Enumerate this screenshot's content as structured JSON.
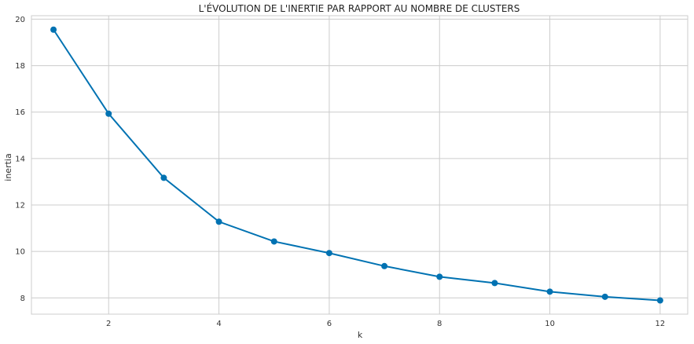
{
  "chart_data": {
    "type": "line",
    "title": "L'ÉVOLUTION DE L'INERTIE PAR RAPPORT AU NOMBRE DE CLUSTERS",
    "xlabel": "k",
    "ylabel": "inertia",
    "x": [
      1,
      2,
      3,
      4,
      5,
      6,
      7,
      8,
      9,
      10,
      11,
      12
    ],
    "series": [
      {
        "values": [
          19.55,
          15.93,
          13.17,
          11.28,
          10.43,
          9.93,
          9.37,
          8.91,
          8.64,
          8.27,
          8.05,
          7.89
        ]
      }
    ],
    "xlim": [
      0.6,
      12.5
    ],
    "ylim": [
      7.3,
      20.15
    ],
    "xticks": [
      2,
      4,
      6,
      8,
      10,
      12
    ],
    "yticks": [
      8,
      10,
      12,
      14,
      16,
      18,
      20
    ],
    "grid": true,
    "line_color": "#0072b2",
    "marker": "circle"
  }
}
